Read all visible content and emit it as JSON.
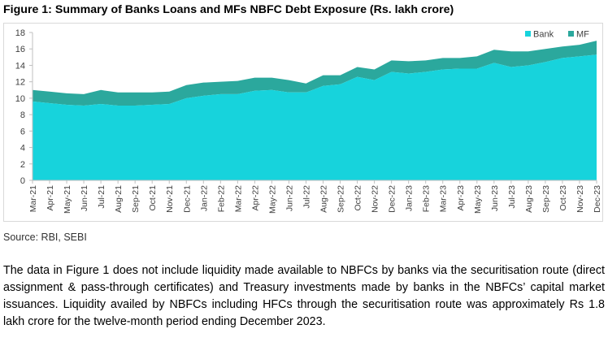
{
  "figure_title": "Figure 1: Summary of Banks Loans and MFs NBFC Debt Exposure (Rs. lakh crore)",
  "source": "Source: RBI, SEBI",
  "paragraph": "The data in Figure 1 does not include liquidity made available to NBFCs by banks via the securitisation route (direct assignment & pass-through certificates) and Treasury investments made by banks in the NBFCs’ capital market issuances. Liquidity availed by NBFCs including HFCs through the securitisation route was approximately Rs 1.8 lakh crore for the twelve-month period ending December 2023.",
  "colors": {
    "bank": "#17d3dc",
    "mf": "#2ba89d",
    "axis": "#bfbfbf",
    "tick_text": "#404040"
  },
  "chart_data": {
    "type": "area",
    "stacked": true,
    "legend_position": "top-right",
    "ylim": [
      0,
      18
    ],
    "yticks": [
      0,
      2,
      4,
      6,
      8,
      10,
      12,
      14,
      16,
      18
    ],
    "grid": false,
    "categories": [
      "Mar-21",
      "Apr-21",
      "May-21",
      "Jun-21",
      "Jul-21",
      "Aug-21",
      "Sep-21",
      "Oct-21",
      "Nov-21",
      "Dec-21",
      "Jan-22",
      "Feb-22",
      "Mar-22",
      "Apr-22",
      "May-22",
      "Jun-22",
      "Jul-22",
      "Aug-22",
      "Sep-22",
      "Oct-22",
      "Nov-22",
      "Dec-22",
      "Jan-23",
      "Feb-23",
      "Mar-23",
      "Apr-23",
      "May-23",
      "Jun-23",
      "Jul-23",
      "Aug-23",
      "Sep-23",
      "Oct-23",
      "Nov-23",
      "Dec-23"
    ],
    "series": [
      {
        "name": "Bank",
        "values": [
          9.6,
          9.4,
          9.2,
          9.1,
          9.3,
          9.1,
          9.1,
          9.2,
          9.3,
          10.0,
          10.3,
          10.5,
          10.5,
          10.9,
          11.0,
          10.7,
          10.7,
          11.5,
          11.7,
          12.6,
          12.2,
          13.2,
          13.0,
          13.2,
          13.5,
          13.6,
          13.6,
          14.3,
          13.8,
          14.0,
          14.4,
          14.9,
          15.1,
          15.3
        ]
      },
      {
        "name": "MF",
        "values": [
          1.4,
          1.4,
          1.4,
          1.4,
          1.7,
          1.6,
          1.6,
          1.5,
          1.5,
          1.6,
          1.6,
          1.5,
          1.6,
          1.6,
          1.5,
          1.5,
          1.1,
          1.3,
          1.1,
          1.2,
          1.3,
          1.4,
          1.5,
          1.4,
          1.4,
          1.3,
          1.5,
          1.6,
          1.9,
          1.7,
          1.6,
          1.4,
          1.4,
          1.7
        ]
      }
    ]
  }
}
